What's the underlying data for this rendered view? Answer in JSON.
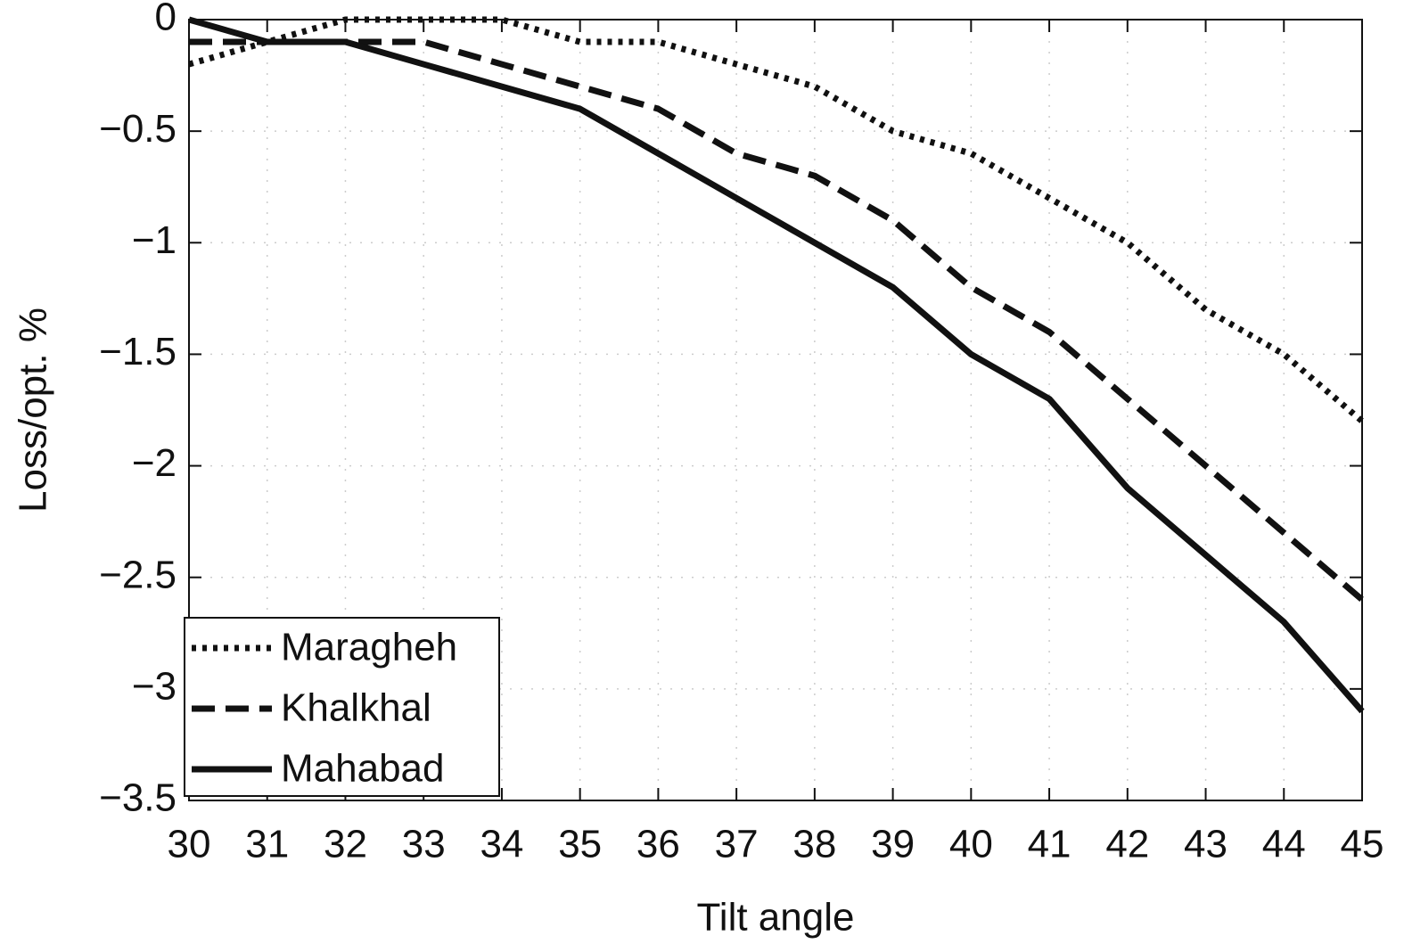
{
  "chart_data": {
    "type": "line",
    "x_label": "Tilt angle",
    "y_label": "Loss/opt. %",
    "x": [
      30,
      31,
      32,
      33,
      34,
      35,
      36,
      37,
      38,
      39,
      40,
      41,
      42,
      43,
      44,
      45
    ],
    "series": [
      {
        "name": "Maragheh",
        "color": "#111111",
        "dash": "dotted",
        "values": [
          -0.2,
          -0.1,
          0,
          0,
          0,
          -0.1,
          -0.1,
          -0.2,
          -0.3,
          -0.5,
          -0.6,
          -0.8,
          -1.0,
          -1.3,
          -1.5,
          -1.8
        ]
      },
      {
        "name": "Khalkhal",
        "color": "#111111",
        "dash": "dashed",
        "values": [
          -0.1,
          -0.1,
          -0.1,
          -0.1,
          -0.2,
          -0.3,
          -0.4,
          -0.6,
          -0.7,
          -0.9,
          -1.2,
          -1.4,
          -1.7,
          -2.0,
          -2.3,
          -2.6
        ]
      },
      {
        "name": "Mahabad",
        "color": "#111111",
        "dash": "solid",
        "values": [
          0,
          -0.1,
          -0.1,
          -0.2,
          -0.3,
          -0.4,
          -0.6,
          -0.8,
          -1.0,
          -1.2,
          -1.5,
          -1.7,
          -2.1,
          -2.4,
          -2.7,
          -3.1
        ]
      }
    ],
    "xlim": [
      30,
      45
    ],
    "xticks": [
      30,
      31,
      32,
      33,
      34,
      35,
      36,
      37,
      38,
      39,
      40,
      41,
      42,
      43,
      44,
      45
    ],
    "ylim": [
      -3.5,
      0
    ],
    "yticks": [
      0,
      {
        "value": -0.5,
        "label": "−0.5"
      },
      {
        "value": -1,
        "label": "−1"
      },
      {
        "value": -1.5,
        "label": "−1.5"
      },
      {
        "value": -2,
        "label": "−2"
      },
      {
        "value": -2.5,
        "label": "−2.5"
      },
      {
        "value": -3,
        "label": "−3"
      },
      {
        "value": -3.5,
        "label": "−3.5"
      }
    ],
    "grid": true,
    "legend_position": "lower left"
  }
}
